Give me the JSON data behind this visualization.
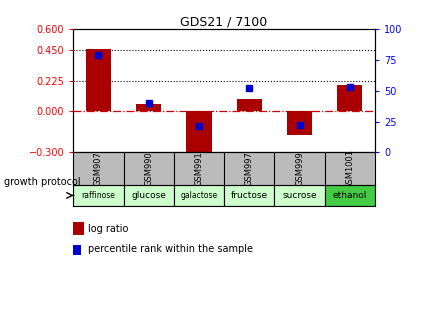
{
  "title": "GDS21 / 7100",
  "samples": [
    "GSM907",
    "GSM990",
    "GSM991",
    "GSM997",
    "GSM999",
    "GSM1001"
  ],
  "protocols": [
    "raffinose",
    "glucose",
    "galactose",
    "fructose",
    "sucrose",
    "ethanol"
  ],
  "log_ratio": [
    0.46,
    0.05,
    -0.34,
    0.09,
    -0.17,
    0.19
  ],
  "percentile_rank": [
    79,
    40,
    21,
    52,
    22,
    53
  ],
  "bar_color": "#aa0000",
  "dot_color": "#0000cc",
  "ylim_left": [
    -0.3,
    0.6
  ],
  "ylim_right": [
    0,
    100
  ],
  "yticks_left": [
    -0.3,
    0,
    0.225,
    0.45,
    0.6
  ],
  "yticks_right": [
    0,
    25,
    50,
    75,
    100
  ],
  "hlines": [
    0.45,
    0.225
  ],
  "hline_zero_color": "#cc0000",
  "protocol_colors": [
    "#ccffcc",
    "#ccffcc",
    "#ccffcc",
    "#ccffcc",
    "#ccffcc",
    "#44cc44"
  ],
  "growth_protocol_label": "growth protocol",
  "legend_log_ratio": "log ratio",
  "legend_percentile": "percentile rank within the sample",
  "background_color": "#ffffff",
  "sample_bg_color": "#bbbbbb",
  "bar_width": 0.5
}
